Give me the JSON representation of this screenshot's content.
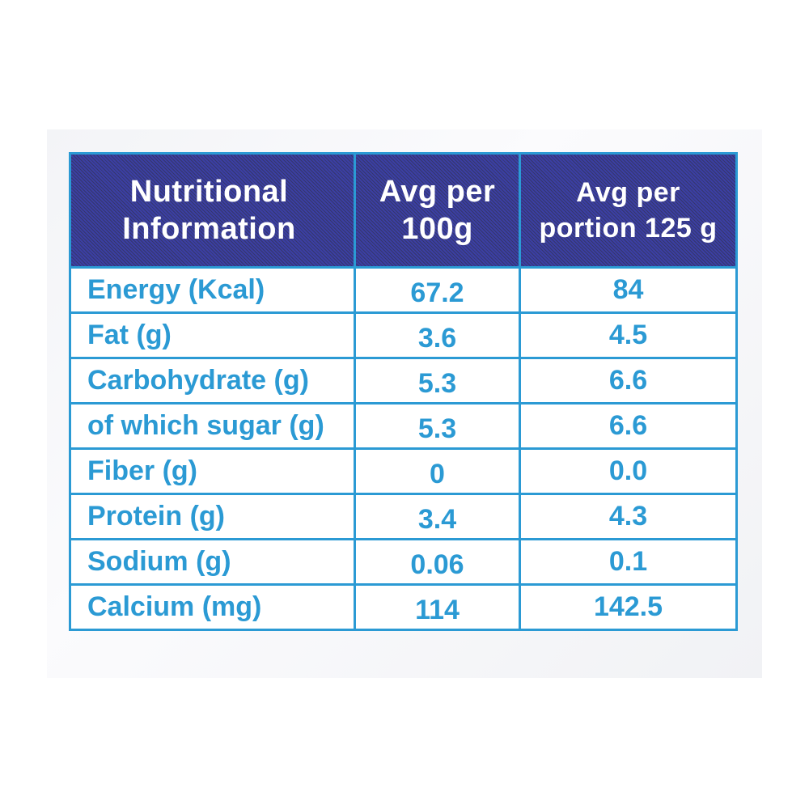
{
  "header": {
    "col1_line1": "Nutritional",
    "col1_line2": "Information",
    "col2_line1": "Avg per",
    "col2_line2": "100g",
    "col3_line1": "Avg per",
    "col3_line2": "portion 125 g"
  },
  "rows": [
    {
      "name": "Energy (Kcal)",
      "per100g": "67.2",
      "perPortion": "84"
    },
    {
      "name": "Fat (g)",
      "per100g": "3.6",
      "perPortion": "4.5"
    },
    {
      "name": "Carbohydrate (g)",
      "per100g": "5.3",
      "perPortion": "6.6"
    },
    {
      "name": "of which sugar (g)",
      "per100g": "5.3",
      "perPortion": "6.6"
    },
    {
      "name": "Fiber (g)",
      "per100g": "0",
      "perPortion": "0.0"
    },
    {
      "name": "Protein (g)",
      "per100g": "3.4",
      "perPortion": "4.3"
    },
    {
      "name": "Sodium (g)",
      "per100g": "0.06",
      "perPortion": "0.1"
    },
    {
      "name": "Calcium (mg)",
      "per100g": "114",
      "perPortion": "142.5"
    }
  ],
  "colors": {
    "header_bg": "#36399c",
    "border_text": "#2b9ad4"
  }
}
